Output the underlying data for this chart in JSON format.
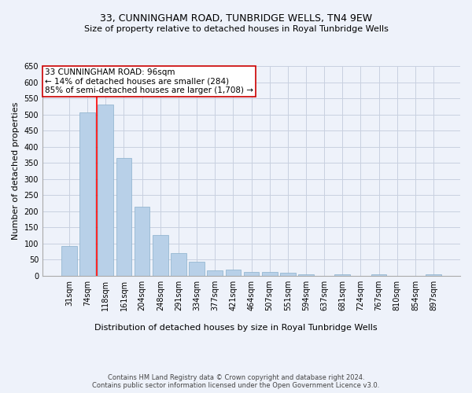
{
  "title": "33, CUNNINGHAM ROAD, TUNBRIDGE WELLS, TN4 9EW",
  "subtitle": "Size of property relative to detached houses in Royal Tunbridge Wells",
  "xlabel": "Distribution of detached houses by size in Royal Tunbridge Wells",
  "ylabel": "Number of detached properties",
  "footnote1": "Contains HM Land Registry data © Crown copyright and database right 2024.",
  "footnote2": "Contains public sector information licensed under the Open Government Licence v3.0.",
  "categories": [
    "31sqm",
    "74sqm",
    "118sqm",
    "161sqm",
    "204sqm",
    "248sqm",
    "291sqm",
    "334sqm",
    "377sqm",
    "421sqm",
    "464sqm",
    "507sqm",
    "551sqm",
    "594sqm",
    "637sqm",
    "681sqm",
    "724sqm",
    "767sqm",
    "810sqm",
    "854sqm",
    "897sqm"
  ],
  "values": [
    93,
    507,
    530,
    365,
    215,
    125,
    70,
    43,
    16,
    19,
    11,
    11,
    8,
    5,
    0,
    5,
    0,
    4,
    0,
    0,
    4
  ],
  "bar_color": "#b8d0e8",
  "bar_edgecolor": "#8ab0cc",
  "property_line_x": 1.5,
  "annotation_text": "33 CUNNINGHAM ROAD: 96sqm\n← 14% of detached houses are smaller (284)\n85% of semi-detached houses are larger (1,708) →",
  "annotation_box_color": "#cc0000",
  "ylim": [
    0,
    650
  ],
  "yticks": [
    0,
    50,
    100,
    150,
    200,
    250,
    300,
    350,
    400,
    450,
    500,
    550,
    600,
    650
  ],
  "background_color": "#eef2fa",
  "grid_color": "#c8d0e0",
  "title_fontsize": 9,
  "subtitle_fontsize": 8,
  "ylabel_fontsize": 8,
  "xlabel_fontsize": 8,
  "tick_fontsize": 7,
  "annotation_fontsize": 7.5,
  "footnote_fontsize": 6
}
